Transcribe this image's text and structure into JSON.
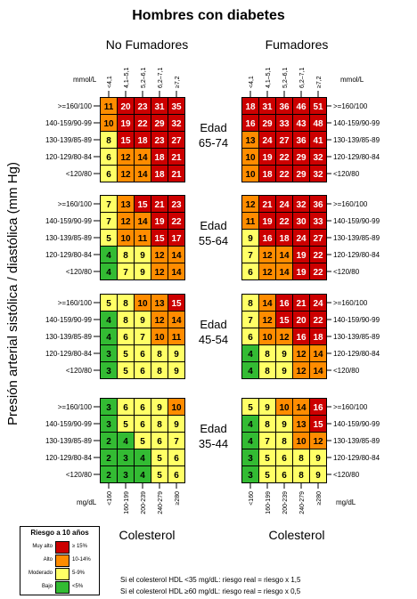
{
  "title": "Hombres con diabetes",
  "y_axis_title": "Presión arterial sistólica / diastólica (mm Hg)",
  "groups": {
    "left": "No Fumadores",
    "right": "Fumadores"
  },
  "x_axis_title": "Colesterol",
  "units": {
    "top": "mmol/L",
    "bottom": "mg/dL"
  },
  "chol_mmol_labels": [
    "<4,1",
    "4,1–5,1",
    "5,2–6,1",
    "6,2–7,1",
    "≥7,2"
  ],
  "chol_mg_labels": [
    "<160",
    "160-199",
    "200-239",
    "240-279",
    "≥280"
  ],
  "bp_labels": [
    ">=160/100",
    "140-159/90-99",
    "130-139/85-89",
    "120-129/80-84",
    "<120/80"
  ],
  "age_label": "Edad",
  "age_groups": [
    "65-74",
    "55-64",
    "45-54",
    "35-44"
  ],
  "legend": {
    "title": "Riesgo a 10 años",
    "items": [
      {
        "label": "Muy alto",
        "range": "≥ 15%",
        "color": "#cc0000"
      },
      {
        "label": "Alto",
        "range": "10-14%",
        "color": "#ff8c00"
      },
      {
        "label": "Moderado",
        "range": "5-9%",
        "color": "#ffff66"
      },
      {
        "label": "Bajo",
        "range": "<5%",
        "color": "#33bb33"
      }
    ]
  },
  "notes": [
    "Si el colesterol HDL <35 mg/dL: riesgo real = riesgo x 1,5",
    "Si el colesterol HDL ≥60 mg/dL: riesgo real = riesgo x 0,5"
  ],
  "chart_data": {
    "type": "heatmap",
    "title": "Hombres con diabetes",
    "rows": [
      ">=160/100",
      "140-159/90-99",
      "130-139/85-89",
      "120-129/80-84",
      "<120/80"
    ],
    "columns": [
      "<160",
      "160-199",
      "200-239",
      "240-279",
      "≥280"
    ],
    "panels": [
      {
        "group": "No Fumadores",
        "age": "65-74",
        "values": [
          [
            11,
            20,
            23,
            31,
            35
          ],
          [
            10,
            19,
            22,
            29,
            32
          ],
          [
            8,
            15,
            18,
            23,
            27
          ],
          [
            6,
            12,
            14,
            18,
            21
          ],
          [
            6,
            12,
            14,
            18,
            21
          ]
        ]
      },
      {
        "group": "Fumadores",
        "age": "65-74",
        "values": [
          [
            18,
            31,
            36,
            46,
            51
          ],
          [
            16,
            29,
            33,
            43,
            48
          ],
          [
            13,
            24,
            27,
            36,
            41
          ],
          [
            10,
            19,
            22,
            29,
            32
          ],
          [
            10,
            18,
            22,
            29,
            32
          ]
        ]
      },
      {
        "group": "No Fumadores",
        "age": "55-64",
        "values": [
          [
            7,
            13,
            15,
            21,
            23
          ],
          [
            7,
            12,
            14,
            19,
            22
          ],
          [
            5,
            10,
            11,
            15,
            17
          ],
          [
            4,
            8,
            9,
            12,
            14
          ],
          [
            4,
            7,
            9,
            12,
            14
          ]
        ]
      },
      {
        "group": "Fumadores",
        "age": "55-64",
        "values": [
          [
            12,
            21,
            24,
            32,
            36
          ],
          [
            11,
            19,
            22,
            30,
            33
          ],
          [
            9,
            16,
            18,
            24,
            27
          ],
          [
            7,
            12,
            14,
            19,
            22
          ],
          [
            6,
            12,
            14,
            19,
            22
          ]
        ]
      },
      {
        "group": "No Fumadores",
        "age": "45-54",
        "values": [
          [
            5,
            8,
            10,
            13,
            15
          ],
          [
            4,
            8,
            9,
            12,
            14
          ],
          [
            4,
            6,
            7,
            10,
            11
          ],
          [
            3,
            5,
            6,
            8,
            9
          ],
          [
            3,
            5,
            6,
            8,
            9
          ]
        ]
      },
      {
        "group": "Fumadores",
        "age": "45-54",
        "values": [
          [
            8,
            14,
            16,
            21,
            24
          ],
          [
            7,
            12,
            15,
            20,
            22
          ],
          [
            6,
            10,
            12,
            16,
            18
          ],
          [
            4,
            8,
            9,
            12,
            14
          ],
          [
            4,
            8,
            9,
            12,
            14
          ]
        ]
      },
      {
        "group": "No Fumadores",
        "age": "35-44",
        "values": [
          [
            3,
            6,
            6,
            9,
            10
          ],
          [
            3,
            5,
            6,
            8,
            9
          ],
          [
            2,
            4,
            5,
            6,
            7
          ],
          [
            2,
            3,
            4,
            5,
            6
          ],
          [
            2,
            3,
            4,
            5,
            6
          ]
        ]
      },
      {
        "group": "Fumadores",
        "age": "35-44",
        "values": [
          [
            5,
            9,
            10,
            14,
            16
          ],
          [
            4,
            8,
            9,
            13,
            15
          ],
          [
            4,
            7,
            8,
            10,
            12
          ],
          [
            3,
            5,
            6,
            8,
            9
          ],
          [
            3,
            5,
            6,
            8,
            9
          ]
        ]
      }
    ],
    "color_scale": [
      {
        "min": 15,
        "label": "Muy alto",
        "color": "#cc0000"
      },
      {
        "min": 10,
        "max": 14,
        "label": "Alto",
        "color": "#ff8c00"
      },
      {
        "min": 5,
        "max": 9,
        "label": "Moderado",
        "color": "#ffff66"
      },
      {
        "max": 4,
        "label": "Bajo",
        "color": "#33bb33"
      }
    ]
  }
}
